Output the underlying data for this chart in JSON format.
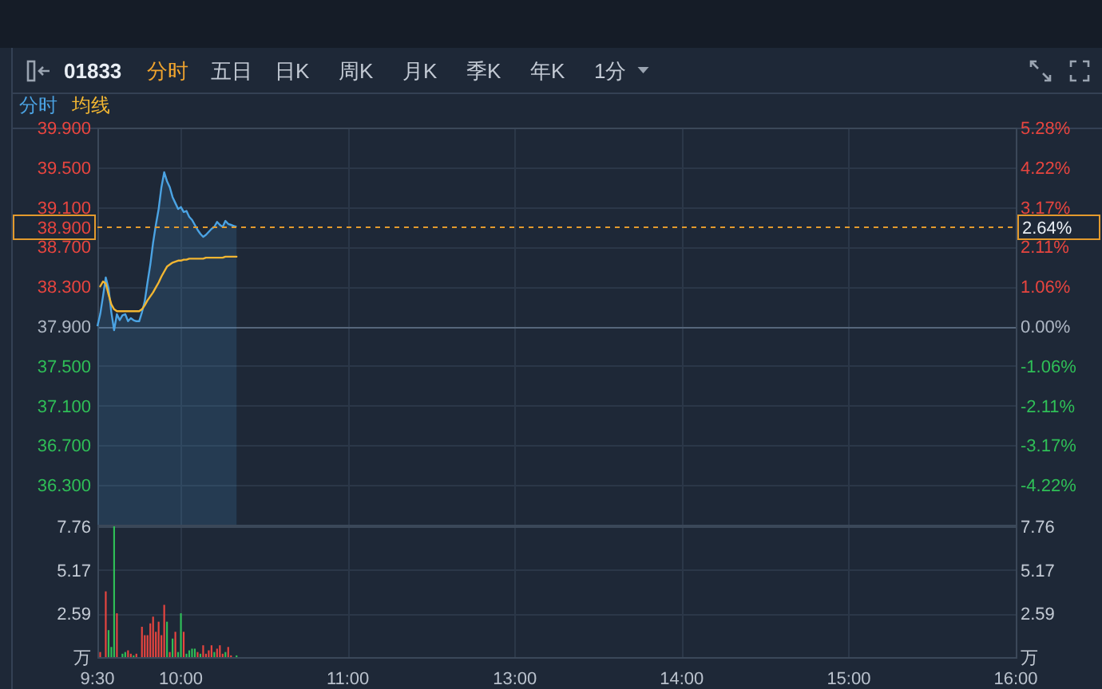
{
  "chart_data": [
    {
      "type": "other",
      "title": "01833",
      "annotations": [
        "分时",
        "五日",
        "日K",
        "周K",
        "月K",
        "季K",
        "年K",
        "1分"
      ]
    },
    {
      "type": "line",
      "annotations": [
        "2.64%"
      ],
      "categories": [
        null,
        null,
        null,
        null,
        null,
        null,
        null,
        null,
        null,
        null,
        null,
        null,
        null,
        null,
        null,
        null,
        null,
        null,
        null,
        null,
        null,
        null,
        null,
        null,
        null,
        null,
        null,
        null,
        null,
        null,
        null,
        null,
        null,
        null,
        null,
        null,
        null,
        null,
        null,
        null,
        null,
        null,
        null,
        null,
        null,
        null,
        null,
        null,
        null,
        null,
        null,
        null,
        null,
        null,
        null,
        null,
        null,
        null,
        null,
        null,
        null,
        null,
        null,
        null,
        null,
        null,
        null,
        null,
        null,
        null,
        null,
        null,
        null,
        null,
        null,
        null,
        null,
        null,
        null,
        null,
        null,
        null,
        null,
        null,
        null,
        null,
        null,
        null,
        null,
        null,
        null,
        null,
        null,
        null,
        null,
        null,
        null,
        null,
        null,
        null,
        null,
        null,
        null,
        null,
        null,
        null,
        null,
        null,
        null,
        null,
        null,
        null,
        null,
        null,
        null,
        null,
        null,
        null,
        null,
        null,
        null,
        null,
        null,
        null,
        null,
        null,
        null,
        null,
        null,
        null,
        null,
        null,
        null,
        null,
        null,
        null,
        null,
        null,
        null,
        null,
        null,
        null,
        null,
        null,
        null,
        null,
        null,
        null,
        null,
        null,
        null,
        null,
        null,
        null,
        null,
        null,
        null,
        null,
        null,
        null,
        null,
        null,
        null,
        null,
        null,
        null,
        null,
        null,
        null,
        null,
        null,
        null,
        null,
        null,
        null,
        null,
        null,
        null,
        null,
        null,
        null,
        null,
        null,
        null,
        null,
        null,
        null,
        null,
        null,
        null,
        null,
        null,
        null,
        null,
        null,
        null,
        null,
        null,
        null,
        null,
        null,
        null,
        null,
        null,
        null,
        null,
        null,
        null,
        null,
        null,
        null,
        null,
        null,
        null,
        null,
        null,
        null,
        null,
        null,
        null,
        null,
        null,
        null,
        null,
        null,
        null,
        null,
        null,
        null,
        null,
        null,
        null,
        null,
        null,
        null,
        null,
        null,
        null,
        null,
        null,
        null,
        null,
        null,
        null,
        null,
        null,
        null,
        null,
        null,
        null,
        null,
        null,
        null,
        null,
        null,
        null,
        null,
        null,
        null,
        null,
        null,
        null,
        null,
        null,
        null,
        null,
        null,
        null,
        null,
        null,
        null,
        null,
        null,
        null,
        null,
        null,
        null,
        null,
        null,
        null,
        null,
        null,
        null,
        null,
        null,
        null,
        null,
        null,
        null,
        null,
        null,
        null,
        null,
        null,
        null,
        null,
        null,
        null,
        null,
        null,
        null,
        null,
        null,
        null,
        null,
        null,
        null,
        null,
        null,
        null,
        null,
        null,
        null,
        null,
        null,
        null,
        null,
        null,
        null,
        null,
        null,
        null,
        null,
        null,
        null,
        null,
        null,
        null,
        null,
        null,
        null
      ],
      "series": [
        {
          "name": "分时",
          "type": "area",
          "color": "#4ba3e3",
          "values": [
            37.9,
            38.02,
            38.2,
            38.39,
            38.28,
            38.04,
            37.86,
            38.02,
            37.96,
            38.01,
            38.02,
            37.95,
            37.98,
            37.96,
            37.95,
            37.95,
            38.04,
            38.15,
            38.34,
            38.52,
            38.74,
            38.92,
            39.08,
            39.3,
            39.45,
            39.36,
            39.3,
            39.2,
            39.14,
            39.08,
            39.1,
            39.05,
            39.06,
            39.0,
            38.97,
            38.92,
            38.87,
            38.83,
            38.8,
            38.82,
            38.85,
            38.88,
            38.9,
            38.95,
            38.92,
            38.9,
            38.96,
            38.93,
            38.92,
            38.91,
            38.9,
            null,
            null,
            null,
            null,
            null,
            null,
            null,
            null,
            null,
            null,
            null,
            null,
            null,
            null,
            null,
            null,
            null,
            null,
            null,
            null,
            null,
            null,
            null,
            null,
            null,
            null,
            null,
            null,
            null,
            null,
            null,
            null,
            null,
            null,
            null,
            null,
            null,
            null,
            null,
            null,
            null,
            null,
            null,
            null,
            null,
            null,
            null,
            null,
            null,
            null,
            null,
            null,
            null,
            null,
            null,
            null,
            null,
            null,
            null,
            null,
            null,
            null,
            null,
            null,
            null,
            null,
            null,
            null,
            null,
            null,
            null,
            null,
            null,
            null,
            null,
            null,
            null,
            null,
            null,
            null,
            null,
            null,
            null,
            null,
            null,
            null,
            null,
            null,
            null,
            null,
            null,
            null,
            null,
            null,
            null,
            null,
            null,
            null,
            null,
            null,
            null,
            null,
            null,
            null,
            null,
            null,
            null,
            null,
            null,
            null,
            null,
            null,
            null,
            null,
            null,
            null,
            null,
            null,
            null,
            null,
            null,
            null,
            null,
            null,
            null,
            null,
            null,
            null,
            null,
            null,
            null,
            null,
            null,
            null,
            null,
            null,
            null,
            null,
            null,
            null,
            null,
            null,
            null,
            null,
            null,
            null,
            null,
            null,
            null,
            null,
            null,
            null,
            null,
            null,
            null,
            null,
            null,
            null,
            null,
            null,
            null,
            null,
            null,
            null,
            null,
            null,
            null,
            null,
            null,
            null,
            null,
            null,
            null,
            null,
            null,
            null,
            null,
            null,
            null,
            null,
            null,
            null,
            null,
            null,
            null,
            null,
            null,
            null,
            null,
            null,
            null,
            null,
            null,
            null,
            null,
            null,
            null,
            null,
            null,
            null,
            null,
            null,
            null,
            null,
            null,
            null,
            null,
            null,
            null,
            null,
            null,
            null,
            null,
            null,
            null,
            null,
            null,
            null,
            null,
            null,
            null,
            null,
            null,
            null,
            null,
            null,
            null,
            null,
            null,
            null,
            null,
            null,
            null,
            null,
            null,
            null,
            null,
            null,
            null,
            null,
            null,
            null,
            null,
            null,
            null,
            null,
            null,
            null,
            null,
            null,
            null,
            null,
            null,
            null,
            null,
            null,
            null,
            null,
            null,
            null,
            null,
            null,
            null,
            null,
            null,
            null,
            null,
            null,
            null,
            null,
            null,
            null,
            null,
            null,
            null,
            null,
            null,
            null,
            null,
            null
          ]
        },
        {
          "name": "均线",
          "type": "line",
          "color": "#f2b632",
          "values": [
            null,
            38.3,
            38.35,
            38.33,
            38.22,
            38.12,
            38.07,
            38.05,
            38.05,
            38.05,
            38.05,
            38.05,
            38.05,
            38.05,
            38.05,
            38.05,
            38.07,
            38.11,
            38.16,
            38.2,
            38.24,
            38.29,
            38.34,
            38.4,
            38.45,
            38.5,
            38.52,
            38.54,
            38.55,
            38.56,
            38.56,
            38.57,
            38.57,
            38.58,
            38.58,
            38.58,
            38.58,
            38.58,
            38.58,
            38.59,
            38.59,
            38.59,
            38.59,
            38.59,
            38.59,
            38.59,
            38.6,
            38.6,
            38.6,
            38.6,
            38.6,
            null,
            null,
            null,
            null,
            null,
            null,
            null,
            null,
            null,
            null,
            null,
            null,
            null,
            null,
            null,
            null,
            null,
            null,
            null,
            null,
            null,
            null,
            null,
            null,
            null,
            null,
            null,
            null,
            null,
            null,
            null,
            null,
            null,
            null,
            null,
            null,
            null,
            null,
            null,
            null,
            null,
            null,
            null,
            null,
            null,
            null,
            null,
            null,
            null,
            null,
            null,
            null,
            null,
            null,
            null,
            null,
            null,
            null,
            null,
            null,
            null,
            null,
            null,
            null,
            null,
            null,
            null,
            null,
            null,
            null,
            null,
            null,
            null,
            null,
            null,
            null,
            null,
            null,
            null,
            null,
            null,
            null,
            null,
            null,
            null,
            null,
            null,
            null,
            null,
            null,
            null,
            null,
            null,
            null,
            null,
            null,
            null,
            null,
            null,
            null,
            null,
            null,
            null,
            null,
            null,
            null,
            null,
            null,
            null,
            null,
            null,
            null,
            null,
            null,
            null,
            null,
            null,
            null,
            null,
            null,
            null,
            null,
            null,
            null,
            null,
            null,
            null,
            null,
            null,
            null,
            null,
            null,
            null,
            null,
            null,
            null,
            null,
            null,
            null,
            null,
            null,
            null,
            null,
            null,
            null,
            null,
            null,
            null,
            null,
            null,
            null,
            null,
            null,
            null,
            null,
            null,
            null,
            null,
            null,
            null,
            null,
            null,
            null,
            null,
            null,
            null,
            null,
            null,
            null,
            null,
            null,
            null,
            null,
            null,
            null,
            null,
            null,
            null,
            null,
            null,
            null,
            null,
            null,
            null,
            null,
            null,
            null,
            null,
            null,
            null,
            null,
            null,
            null,
            null,
            null,
            null,
            null,
            null,
            null,
            null,
            null,
            null,
            null,
            null,
            null,
            null,
            null,
            null,
            null,
            null,
            null,
            null,
            null,
            null,
            null,
            null,
            null,
            null,
            null,
            null,
            null,
            null,
            null,
            null,
            null,
            null,
            null,
            null,
            null,
            null,
            null,
            null,
            null,
            null,
            null,
            null,
            null,
            null,
            null,
            null,
            null,
            null,
            null,
            null,
            null,
            null,
            null,
            null,
            null,
            null,
            null,
            null,
            null,
            null,
            null,
            null,
            null,
            null,
            null,
            null,
            null,
            null,
            null,
            null,
            null,
            null,
            null,
            null,
            null,
            null,
            null,
            null,
            null,
            null,
            null,
            null,
            null,
            null,
            null,
            null
          ]
        }
      ],
      "ylim": [
        35.9,
        39.9
      ],
      "yticks": [
        {
          "value": 36.3,
          "label": "36.300"
        },
        {
          "value": 36.7,
          "label": "36.700"
        },
        {
          "value": 37.1,
          "label": "37.100"
        },
        {
          "value": 37.5,
          "label": "37.500"
        },
        {
          "value": 37.9,
          "label": "37.900"
        },
        {
          "value": 38.3,
          "label": "38.300"
        },
        {
          "value": 38.7,
          "label": "38.700"
        },
        {
          "value": 39.1,
          "label": "39.100"
        },
        {
          "value": 39.5,
          "label": "39.500"
        },
        {
          "value": 39.9,
          "label": "39.900"
        }
      ],
      "y2lim": [
        -5.28,
        5.28
      ],
      "y2ticks": [
        {
          "value": -4.22,
          "label": "-4.22%"
        },
        {
          "value": -3.17,
          "label": "-3.17%"
        },
        {
          "value": -2.11,
          "label": "-2.11%"
        },
        {
          "value": -1.06,
          "label": "-1.06%"
        },
        {
          "value": 0,
          "label": "0.00%"
        },
        {
          "value": 1.06,
          "label": "1.06%"
        },
        {
          "value": 2.11,
          "label": "2.11%"
        },
        {
          "value": 3.17,
          "label": "3.17%"
        },
        {
          "value": 4.22,
          "label": "4.22%"
        },
        {
          "value": 5.28,
          "label": "5.28%"
        }
      ],
      "ref_lines": [
        {
          "axis": "y",
          "value": 38.9,
          "label": "38.900",
          "color": "#e39a2d",
          "line_style": "dashed"
        }
      ],
      "grid": true,
      "legend": "top left",
      "tick_labels": "y"
    },
    {
      "type": "bar",
      "categories": [
        "9:30",
        null,
        null,
        null,
        null,
        null,
        null,
        null,
        null,
        null,
        null,
        null,
        null,
        null,
        null,
        null,
        null,
        null,
        null,
        null,
        null,
        null,
        null,
        null,
        null,
        null,
        null,
        null,
        null,
        null,
        "10:00",
        null,
        null,
        null,
        null,
        null,
        null,
        null,
        null,
        null,
        null,
        null,
        null,
        null,
        null,
        null,
        null,
        null,
        null,
        null,
        null,
        null,
        null,
        null,
        null,
        null,
        null,
        null,
        null,
        null,
        null,
        null,
        null,
        null,
        null,
        null,
        null,
        null,
        null,
        null,
        null,
        null,
        null,
        null,
        null,
        null,
        null,
        null,
        null,
        null,
        null,
        null,
        null,
        null,
        null,
        null,
        null,
        null,
        null,
        null,
        "11:00",
        null,
        null,
        null,
        null,
        null,
        null,
        null,
        null,
        null,
        null,
        null,
        null,
        null,
        null,
        null,
        null,
        null,
        null,
        null,
        null,
        null,
        null,
        null,
        null,
        null,
        null,
        null,
        null,
        null,
        null,
        null,
        null,
        null,
        null,
        null,
        null,
        null,
        null,
        null,
        null,
        null,
        null,
        null,
        null,
        null,
        null,
        null,
        null,
        null,
        null,
        null,
        null,
        null,
        null,
        null,
        null,
        null,
        null,
        null,
        "13:00",
        null,
        null,
        null,
        null,
        null,
        null,
        null,
        null,
        null,
        null,
        null,
        null,
        null,
        null,
        null,
        null,
        null,
        null,
        null,
        null,
        null,
        null,
        null,
        null,
        null,
        null,
        null,
        null,
        null,
        null,
        null,
        null,
        null,
        null,
        null,
        null,
        null,
        null,
        null,
        null,
        null,
        null,
        null,
        null,
        null,
        null,
        null,
        null,
        null,
        null,
        null,
        null,
        null,
        null,
        null,
        null,
        null,
        null,
        null,
        "14:00",
        null,
        null,
        null,
        null,
        null,
        null,
        null,
        null,
        null,
        null,
        null,
        null,
        null,
        null,
        null,
        null,
        null,
        null,
        null,
        null,
        null,
        null,
        null,
        null,
        null,
        null,
        null,
        null,
        null,
        null,
        null,
        null,
        null,
        null,
        null,
        null,
        null,
        null,
        null,
        null,
        null,
        null,
        null,
        null,
        null,
        null,
        null,
        null,
        null,
        null,
        null,
        null,
        null,
        null,
        null,
        null,
        null,
        null,
        null,
        "15:00",
        null,
        null,
        null,
        null,
        null,
        null,
        null,
        null,
        null,
        null,
        null,
        null,
        null,
        null,
        null,
        null,
        null,
        null,
        null,
        null,
        null,
        null,
        null,
        null,
        null,
        null,
        null,
        null,
        null,
        null,
        null,
        null,
        null,
        null,
        null,
        null,
        null,
        null,
        null,
        null,
        null,
        null,
        null,
        null,
        null,
        null,
        null,
        null,
        null,
        null,
        null,
        null,
        null,
        null,
        null,
        null,
        null,
        null,
        null,
        "16:00"
      ],
      "values": [
        null,
        0.3,
        null,
        3.9,
        1.6,
        0.6,
        7.76,
        2.6,
        null,
        0.2,
        0.3,
        0.4,
        0.2,
        0.1,
        0.2,
        null,
        1.8,
        1.3,
        1.3,
        2.0,
        2.4,
        1.5,
        2.1,
        1.3,
        3.1,
        2.1,
        0.3,
        1.1,
        1.5,
        0.3,
        2.6,
        1.5,
        0.2,
        0.4,
        0.5,
        0.5,
        0.3,
        0.2,
        0.7,
        0.2,
        0.4,
        0.7,
        0.3,
        0.5,
        0.7,
        0.2,
        0.3,
        0.6,
        0.1,
        null,
        0.1,
        null,
        null,
        null,
        null,
        null,
        null,
        null,
        null,
        null,
        null,
        null,
        null,
        null,
        null,
        null,
        null,
        null,
        null,
        null,
        null,
        null,
        null,
        null,
        null,
        null,
        null,
        null,
        null,
        null,
        null,
        null,
        null,
        null,
        null,
        null,
        null,
        null,
        null,
        null,
        null,
        null,
        null,
        null,
        null,
        null,
        null,
        null,
        null,
        null,
        null,
        null,
        null,
        null,
        null,
        null,
        null,
        null,
        null,
        null,
        null,
        null,
        null,
        null,
        null,
        null,
        null,
        null,
        null,
        null,
        null,
        null,
        null,
        null,
        null,
        null,
        null,
        null,
        null,
        null,
        null,
        null,
        null,
        null,
        null,
        null,
        null,
        null,
        null,
        null,
        null,
        null,
        null,
        null,
        null,
        null,
        null,
        null,
        null,
        null,
        null,
        null,
        null,
        null,
        null,
        null,
        null,
        null,
        null,
        null,
        null,
        null,
        null,
        null,
        null,
        null,
        null,
        null,
        null,
        null,
        null,
        null,
        null,
        null,
        null,
        null,
        null,
        null,
        null,
        null,
        null,
        null,
        null,
        null,
        null,
        null,
        null,
        null,
        null,
        null,
        null,
        null,
        null,
        null,
        null,
        null,
        null,
        null,
        null,
        null,
        null,
        null,
        null,
        null,
        null,
        null,
        null,
        null,
        null,
        null,
        null,
        null,
        null,
        null,
        null,
        null,
        null,
        null,
        null,
        null,
        null,
        null,
        null,
        null,
        null,
        null,
        null,
        null,
        null,
        null,
        null,
        null,
        null,
        null,
        null,
        null,
        null,
        null,
        null,
        null,
        null,
        null,
        null,
        null,
        null,
        null,
        null,
        null,
        null,
        null,
        null,
        null,
        null,
        null,
        null,
        null,
        null,
        null,
        null,
        null,
        null,
        null,
        null,
        null,
        null,
        null,
        null,
        null,
        null,
        null,
        null,
        null,
        null,
        null,
        null,
        null,
        null,
        null,
        null,
        null,
        null,
        null,
        null,
        null,
        null,
        null,
        null,
        null,
        null,
        null,
        null,
        null,
        null,
        null,
        null,
        null,
        null,
        null,
        null,
        null,
        null,
        null,
        null,
        null,
        null,
        null,
        null,
        null,
        null,
        null,
        null,
        null,
        null,
        null,
        null,
        null,
        null,
        null,
        null,
        null,
        null,
        null,
        null,
        null,
        null,
        null,
        null,
        null,
        null,
        null,
        null
      ],
      "colors": [
        null,
        "#e8453f",
        null,
        "#e8453f",
        "#2fbf57",
        "#2fbf57",
        "#2fbf57",
        "#e8453f",
        null,
        "#2fbf57",
        "#2fbf57",
        "#e8453f",
        "#e8453f",
        "#2fbf57",
        "#e8453f",
        null,
        "#e8453f",
        "#e8453f",
        "#e8453f",
        "#e8453f",
        "#e8453f",
        "#e8453f",
        "#e8453f",
        "#e8453f",
        "#e8453f",
        "#2fbf57",
        "#e8453f",
        "#2fbf57",
        "#e8453f",
        "#2fbf57",
        "#2fbf57",
        "#e8453f",
        "#2fbf57",
        "#2fbf57",
        "#2fbf57",
        "#2fbf57",
        "#e8453f",
        "#2fbf57",
        "#e8453f",
        "#e8453f",
        "#e8453f",
        "#e8453f",
        "#2fbf57",
        "#e8453f",
        "#e8453f",
        "#e8453f",
        "#2fbf57",
        "#e8453f",
        "#e8453f",
        null,
        "#2fbf57",
        null,
        null,
        null,
        null,
        null,
        null,
        null,
        null,
        null,
        null,
        null,
        null,
        null,
        null,
        null,
        null,
        null,
        null,
        null,
        null,
        null,
        null,
        null,
        null,
        null,
        null,
        null,
        null,
        null,
        null,
        null,
        null,
        null,
        null,
        null,
        null,
        null,
        null,
        null,
        null,
        null,
        null,
        null,
        null,
        null,
        null,
        null,
        null,
        null,
        null,
        null,
        null,
        null,
        null,
        null,
        null,
        null,
        null,
        null,
        null,
        null,
        null,
        null,
        null,
        null,
        null,
        null,
        null,
        null,
        null,
        null,
        null,
        null,
        null,
        null,
        null,
        null,
        null,
        null,
        null,
        null,
        null,
        null,
        null,
        null,
        null,
        null,
        null,
        null,
        null,
        null,
        null,
        null,
        null,
        null,
        null,
        null,
        null,
        null,
        null,
        null,
        null,
        null,
        null,
        null,
        null,
        null,
        null,
        null,
        null,
        null,
        null,
        null,
        null,
        null,
        null,
        null,
        null,
        null,
        null,
        null,
        null,
        null,
        null,
        null,
        null,
        null,
        null,
        null,
        null,
        null,
        null,
        null,
        null,
        null,
        null,
        null,
        null,
        null,
        null,
        null,
        null,
        null,
        null,
        null,
        null,
        null,
        null,
        null,
        null,
        null,
        null,
        null,
        null,
        null,
        null,
        null,
        null,
        null,
        null,
        null,
        null,
        null,
        null,
        null,
        null,
        null,
        null,
        null,
        null,
        null,
        null,
        null,
        null,
        null,
        null,
        null,
        null,
        null,
        null,
        null,
        null,
        null,
        null,
        null,
        null,
        null,
        null,
        null,
        null,
        null,
        null,
        null,
        null,
        null,
        null,
        null,
        null,
        null,
        null,
        null,
        null,
        null,
        null,
        null,
        null,
        null,
        null,
        null,
        null,
        null,
        null,
        null,
        null,
        null,
        null,
        null,
        null,
        null,
        null,
        null,
        null,
        null,
        null,
        null,
        null,
        null,
        null,
        null,
        null,
        null,
        null,
        null,
        null,
        null,
        null,
        null,
        null,
        null,
        null,
        null,
        null,
        null,
        null,
        null,
        null,
        null,
        null,
        null,
        null,
        null,
        null,
        null,
        null,
        null,
        null,
        null,
        null,
        null,
        null,
        null,
        null,
        null,
        null,
        null,
        null,
        null,
        null,
        null,
        null,
        null,
        null,
        null,
        null,
        null,
        null,
        null,
        null,
        null,
        null
      ],
      "ylim": [
        0,
        7.76
      ],
      "yticks": [
        {
          "value": 0,
          "label": "万"
        },
        2.59,
        5.17,
        7.76
      ],
      "y2lim": [
        0,
        7.76
      ],
      "y2ticks": [
        {
          "value": 0,
          "label": "万"
        },
        2.59,
        5.17,
        7.76
      ],
      "grid": true
    }
  ]
}
